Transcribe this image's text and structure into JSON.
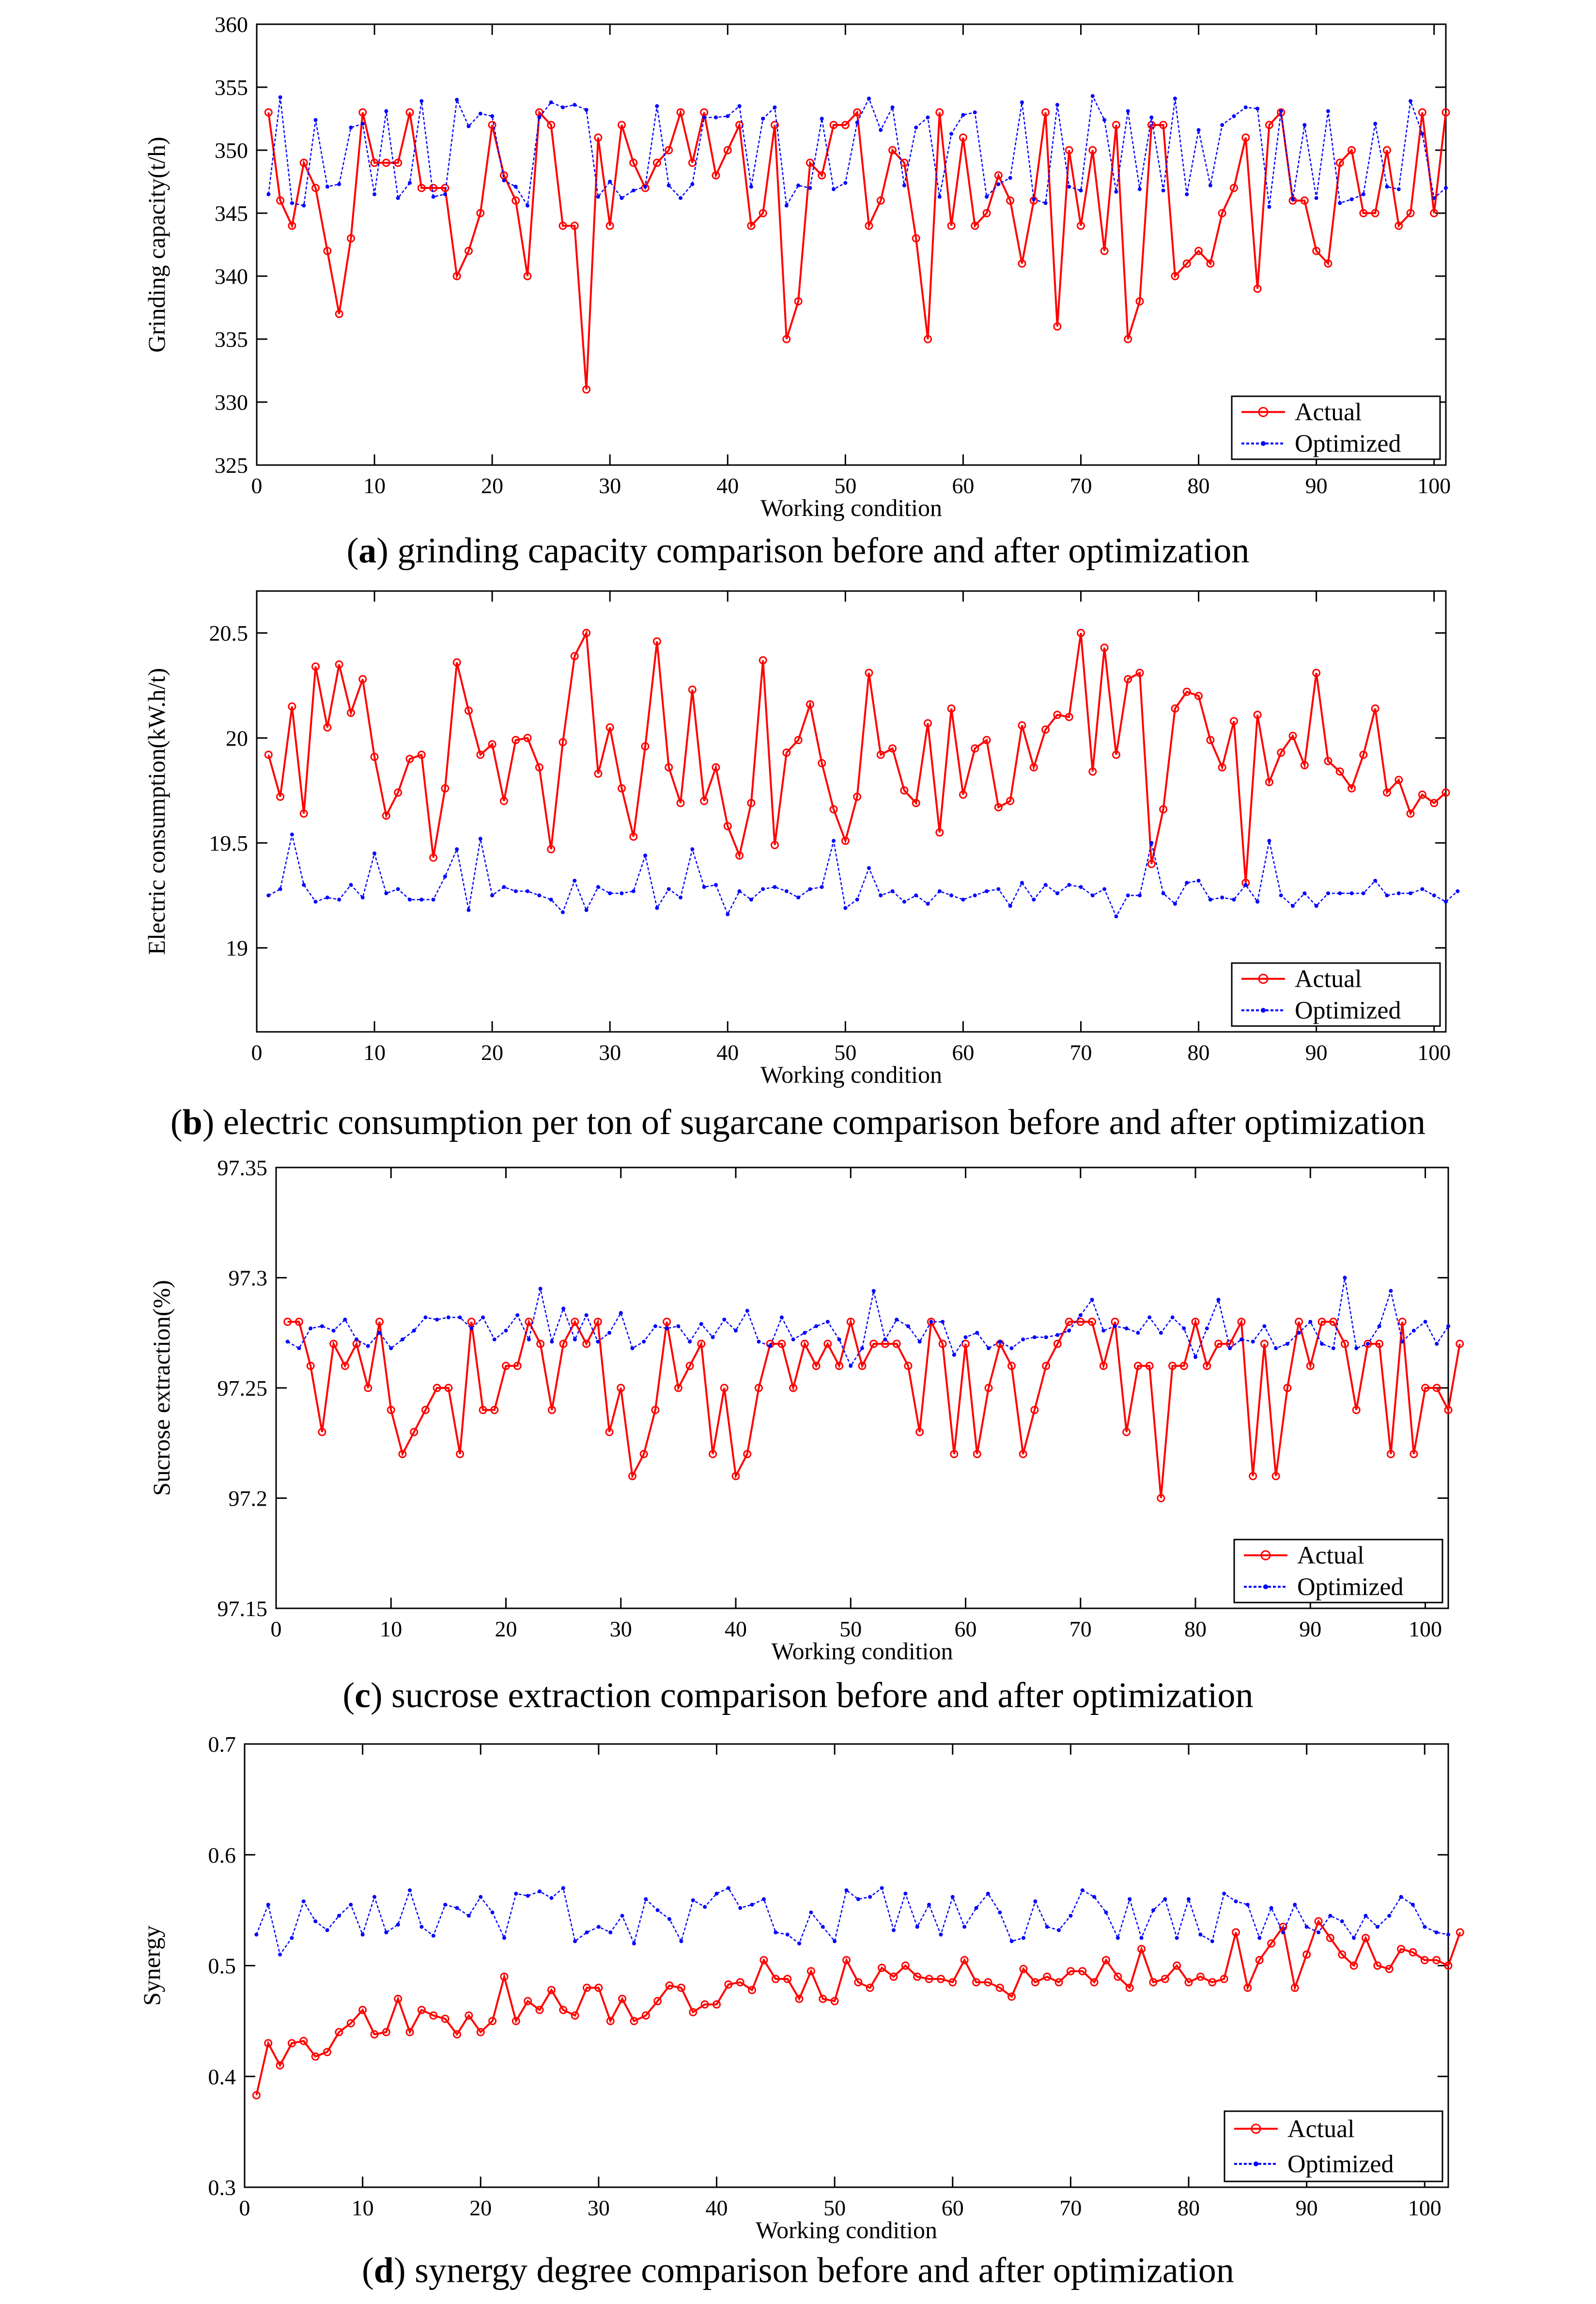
{
  "colors": {
    "actual": "#ff0000",
    "optimized": "#0000ff"
  },
  "chart_data": [
    {
      "type": "line",
      "caption_letter": "a",
      "caption": ") grinding capacity comparison before and after optimization",
      "xlabel": "Working condition",
      "ylabel": "Grinding capacity(t/h)",
      "xlim": [
        0,
        101
      ],
      "ylim": [
        325,
        360
      ],
      "xticks": [
        0,
        10,
        20,
        30,
        40,
        50,
        60,
        70,
        80,
        90,
        100
      ],
      "yticks": [
        325,
        330,
        335,
        340,
        345,
        350,
        355,
        360
      ],
      "ytick_labels": [
        "325",
        "330",
        "335",
        "340",
        "345",
        "350",
        "355",
        "360"
      ],
      "legend_position": "bottom-right",
      "series": [
        {
          "name": "Actual",
          "marker": "circle",
          "values": [
            353,
            346,
            344,
            349,
            347,
            342,
            337,
            343,
            353,
            349,
            349,
            349,
            353,
            347,
            347,
            347,
            340,
            342,
            345,
            352,
            348,
            346,
            340,
            353,
            352,
            344,
            344,
            331,
            351,
            344,
            352,
            349,
            347,
            349,
            350,
            353,
            349,
            353,
            348,
            350,
            352,
            344,
            345,
            352,
            335,
            338,
            349,
            348,
            352,
            352,
            353,
            344,
            346,
            350,
            349,
            343,
            335,
            353,
            344,
            351,
            344,
            345,
            348,
            346,
            341,
            346,
            353,
            336,
            350,
            344,
            350,
            342,
            352,
            335,
            338,
            352,
            352,
            340,
            341,
            342,
            341,
            345,
            347,
            351,
            339,
            352,
            353,
            346,
            346,
            342,
            341,
            349,
            350,
            345,
            345,
            350,
            344,
            345,
            353,
            345,
            353
          ]
        },
        {
          "name": "Optimized",
          "marker": "dot",
          "values": [
            346.5,
            354.2,
            345.8,
            345.6,
            352.4,
            347.1,
            347.3,
            351.8,
            352.1,
            346.5,
            353.1,
            346.2,
            347.4,
            353.9,
            346.3,
            346.5,
            354.0,
            351.9,
            352.9,
            352.7,
            347.6,
            347.1,
            345.6,
            352.6,
            353.8,
            353.4,
            353.6,
            353.2,
            346.3,
            347.5,
            346.2,
            346.8,
            347.1,
            353.5,
            347.2,
            346.2,
            347.3,
            352.6,
            352.6,
            352.7,
            353.5,
            347.1,
            352.5,
            353.4,
            345.6,
            347.2,
            347.0,
            352.5,
            346.9,
            347.4,
            352.2,
            354.1,
            351.6,
            353.4,
            347.2,
            351.8,
            352.6,
            346.3,
            351.3,
            352.8,
            353.0,
            346.3,
            347.3,
            347.8,
            353.8,
            346.1,
            345.8,
            353.6,
            347.1,
            346.8,
            354.3,
            352.4,
            346.7,
            353.1,
            346.9,
            352.6,
            346.8,
            354.1,
            346.5,
            351.6,
            347.2,
            352.0,
            352.7,
            353.4,
            353.3,
            345.5,
            353.1,
            346.1,
            352.0,
            346.2,
            353.1,
            345.8,
            346.1,
            346.5,
            352.1,
            347.1,
            346.9,
            353.9,
            351.3,
            346.2,
            347.0
          ]
        }
      ]
    },
    {
      "type": "line",
      "caption_letter": "b",
      "caption": ") electric consumption per ton of sugarcane comparison before and after optimization",
      "xlabel": "Working condition",
      "ylabel": "Electric consumption(kW.h/t)",
      "xlim": [
        0,
        101
      ],
      "ylim": [
        18.6,
        20.7
      ],
      "xticks": [
        0,
        10,
        20,
        30,
        40,
        50,
        60,
        70,
        80,
        90,
        100
      ],
      "yticks": [
        19,
        19.5,
        20,
        20.5
      ],
      "ytick_labels": [
        "19",
        "19.5",
        "20",
        "20.5"
      ],
      "legend_position": "bottom-right",
      "series": [
        {
          "name": "Actual",
          "marker": "circle",
          "values": [
            19.92,
            19.72,
            20.15,
            19.64,
            20.34,
            20.05,
            20.35,
            20.12,
            20.28,
            19.91,
            19.63,
            19.74,
            19.9,
            19.92,
            19.43,
            19.76,
            20.36,
            20.13,
            19.92,
            19.97,
            19.7,
            19.99,
            20.0,
            19.86,
            19.47,
            19.98,
            20.39,
            20.5,
            19.83,
            20.05,
            19.76,
            19.53,
            19.96,
            20.46,
            19.86,
            19.69,
            20.23,
            19.7,
            19.86,
            19.58,
            19.44,
            19.69,
            20.37,
            19.49,
            19.93,
            19.99,
            20.16,
            19.88,
            19.66,
            19.51,
            19.72,
            20.31,
            19.92,
            19.95,
            19.75,
            19.69,
            20.07,
            19.55,
            20.14,
            19.73,
            19.95,
            19.99,
            19.67,
            19.7,
            20.06,
            19.86,
            20.04,
            20.11,
            20.1,
            20.5,
            19.84,
            20.43,
            19.92,
            20.28,
            20.31,
            19.4,
            19.66,
            20.14,
            20.22,
            20.2,
            19.99,
            19.86,
            20.08,
            19.31,
            20.11,
            19.79,
            19.93,
            20.01,
            19.87,
            20.31,
            19.89,
            19.84,
            19.76,
            19.92,
            20.14,
            19.74,
            19.8,
            19.64,
            19.73,
            19.69,
            19.74
          ]
        },
        {
          "name": "Optimized",
          "marker": "dot",
          "values": [
            19.25,
            19.28,
            19.54,
            19.3,
            19.22,
            19.24,
            19.23,
            19.3,
            19.24,
            19.45,
            19.26,
            19.28,
            19.23,
            19.23,
            19.23,
            19.34,
            19.47,
            19.18,
            19.52,
            19.25,
            19.29,
            19.27,
            19.27,
            19.25,
            19.23,
            19.17,
            19.32,
            19.18,
            19.29,
            19.26,
            19.26,
            19.27,
            19.44,
            19.19,
            19.28,
            19.24,
            19.47,
            19.29,
            19.3,
            19.16,
            19.27,
            19.23,
            19.28,
            19.29,
            19.27,
            19.24,
            19.28,
            19.29,
            19.51,
            19.19,
            19.23,
            19.38,
            19.25,
            19.27,
            19.22,
            19.25,
            19.21,
            19.27,
            19.25,
            19.23,
            19.25,
            19.27,
            19.28,
            19.2,
            19.31,
            19.23,
            19.3,
            19.26,
            19.3,
            19.29,
            19.25,
            19.28,
            19.15,
            19.25,
            19.25,
            19.5,
            19.26,
            19.21,
            19.31,
            19.32,
            19.23,
            19.24,
            19.23,
            19.3,
            19.22,
            19.51,
            19.25,
            19.2,
            19.26,
            19.2,
            19.26,
            19.26,
            19.26,
            19.26,
            19.32,
            19.25,
            19.26,
            19.26,
            19.28,
            19.25,
            19.22,
            19.27
          ]
        }
      ]
    },
    {
      "type": "line",
      "caption_letter": "c",
      "caption": ") sucrose extraction comparison before and after optimization",
      "xlabel": "Working condition",
      "ylabel": "Sucrose extraction(%)",
      "xlim": [
        0,
        102
      ],
      "ylim": [
        97.15,
        97.35
      ],
      "xticks": [
        0,
        10,
        20,
        30,
        40,
        50,
        60,
        70,
        80,
        90,
        100
      ],
      "yticks": [
        97.15,
        97.2,
        97.25,
        97.3,
        97.35
      ],
      "ytick_labels": [
        "97.15",
        "97.2",
        "97.25",
        "97.3",
        "97.35"
      ],
      "legend_position": "bottom-right",
      "series": [
        {
          "name": "Actual",
          "marker": "circle",
          "values": [
            97.28,
            97.28,
            97.26,
            97.23,
            97.27,
            97.26,
            97.27,
            97.25,
            97.28,
            97.24,
            97.22,
            97.23,
            97.24,
            97.25,
            97.25,
            97.22,
            97.28,
            97.24,
            97.24,
            97.26,
            97.26,
            97.28,
            97.27,
            97.24,
            97.27,
            97.28,
            97.27,
            97.28,
            97.23,
            97.25,
            97.21,
            97.22,
            97.24,
            97.28,
            97.25,
            97.26,
            97.27,
            97.22,
            97.25,
            97.21,
            97.22,
            97.25,
            97.27,
            97.27,
            97.25,
            97.27,
            97.26,
            97.27,
            97.26,
            97.28,
            97.26,
            97.27,
            97.27,
            97.27,
            97.26,
            97.23,
            97.28,
            97.27,
            97.22,
            97.27,
            97.22,
            97.25,
            97.27,
            97.26,
            97.22,
            97.24,
            97.26,
            97.27,
            97.28,
            97.28,
            97.28,
            97.26,
            97.28,
            97.23,
            97.26,
            97.26,
            97.2,
            97.26,
            97.26,
            97.28,
            97.26,
            97.27,
            97.27,
            97.28,
            97.21,
            97.27,
            97.21,
            97.25,
            97.28,
            97.26,
            97.28,
            97.28,
            97.27,
            97.24,
            97.27,
            97.27,
            97.22,
            97.28,
            97.22,
            97.25,
            97.25,
            97.24,
            97.27
          ]
        },
        {
          "name": "Optimized",
          "marker": "dot",
          "values": [
            97.271,
            97.268,
            97.277,
            97.278,
            97.276,
            97.281,
            97.272,
            97.269,
            97.275,
            97.268,
            97.272,
            97.276,
            97.282,
            97.281,
            97.282,
            97.282,
            97.277,
            97.282,
            97.272,
            97.276,
            97.283,
            97.272,
            97.295,
            97.271,
            97.286,
            97.272,
            97.283,
            97.271,
            97.275,
            97.284,
            97.268,
            97.271,
            97.278,
            97.277,
            97.278,
            97.271,
            97.279,
            97.273,
            97.281,
            97.276,
            97.285,
            97.271,
            97.269,
            97.282,
            97.272,
            97.275,
            97.278,
            97.28,
            97.272,
            97.26,
            97.268,
            97.294,
            97.272,
            97.281,
            97.278,
            97.271,
            97.28,
            97.28,
            97.265,
            97.273,
            97.275,
            97.268,
            97.271,
            97.268,
            97.272,
            97.273,
            97.273,
            97.274,
            97.276,
            97.283,
            97.29,
            97.276,
            97.278,
            97.277,
            97.275,
            97.282,
            97.275,
            97.282,
            97.277,
            97.264,
            97.277,
            97.29,
            97.268,
            97.272,
            97.271,
            97.278,
            97.268,
            97.27,
            97.275,
            97.28,
            97.27,
            97.268,
            97.3,
            97.268,
            97.27,
            97.278,
            97.294,
            97.271,
            97.276,
            97.28,
            97.27,
            97.278
          ]
        }
      ]
    },
    {
      "type": "line",
      "caption_letter": "d",
      "caption": ") synergy degree comparison before and after optimization",
      "xlabel": "Working condition",
      "ylabel": "Synergy",
      "xlim": [
        0,
        102
      ],
      "ylim": [
        0.3,
        0.7
      ],
      "xticks": [
        0,
        10,
        20,
        30,
        40,
        50,
        60,
        70,
        80,
        90,
        100
      ],
      "yticks": [
        0.3,
        0.4,
        0.5,
        0.6,
        0.7
      ],
      "ytick_labels": [
        "0.3",
        "0.4",
        "0.5",
        "0.6",
        "0.7"
      ],
      "legend_position": "bottom-right",
      "series": [
        {
          "name": "Actual",
          "marker": "circle",
          "values": [
            0.383,
            0.43,
            0.41,
            0.43,
            0.432,
            0.418,
            0.422,
            0.44,
            0.448,
            0.46,
            0.438,
            0.44,
            0.47,
            0.44,
            0.46,
            0.455,
            0.452,
            0.438,
            0.455,
            0.44,
            0.45,
            0.49,
            0.45,
            0.468,
            0.46,
            0.478,
            0.46,
            0.455,
            0.48,
            0.48,
            0.45,
            0.47,
            0.45,
            0.455,
            0.468,
            0.482,
            0.48,
            0.458,
            0.465,
            0.465,
            0.483,
            0.485,
            0.478,
            0.505,
            0.488,
            0.488,
            0.47,
            0.495,
            0.47,
            0.468,
            0.505,
            0.485,
            0.48,
            0.498,
            0.49,
            0.5,
            0.49,
            0.488,
            0.488,
            0.485,
            0.505,
            0.485,
            0.485,
            0.48,
            0.472,
            0.497,
            0.485,
            0.49,
            0.485,
            0.495,
            0.495,
            0.485,
            0.505,
            0.49,
            0.48,
            0.515,
            0.485,
            0.488,
            0.5,
            0.485,
            0.49,
            0.485,
            0.488,
            0.53,
            0.48,
            0.505,
            0.52,
            0.535,
            0.48,
            0.51,
            0.54,
            0.525,
            0.51,
            0.5,
            0.525,
            0.5,
            0.497,
            0.515,
            0.512,
            0.505,
            0.505,
            0.5,
            0.53
          ]
        },
        {
          "name": "Optimized",
          "marker": "dot",
          "values": [
            0.528,
            0.555,
            0.51,
            0.525,
            0.558,
            0.54,
            0.532,
            0.545,
            0.555,
            0.528,
            0.562,
            0.53,
            0.537,
            0.568,
            0.535,
            0.527,
            0.555,
            0.552,
            0.545,
            0.562,
            0.548,
            0.525,
            0.565,
            0.563,
            0.567,
            0.561,
            0.57,
            0.522,
            0.53,
            0.535,
            0.53,
            0.545,
            0.52,
            0.56,
            0.55,
            0.542,
            0.522,
            0.559,
            0.553,
            0.565,
            0.57,
            0.552,
            0.555,
            0.56,
            0.53,
            0.528,
            0.52,
            0.548,
            0.535,
            0.522,
            0.568,
            0.56,
            0.562,
            0.57,
            0.532,
            0.565,
            0.535,
            0.555,
            0.528,
            0.562,
            0.535,
            0.552,
            0.565,
            0.548,
            0.522,
            0.525,
            0.558,
            0.535,
            0.532,
            0.545,
            0.568,
            0.562,
            0.548,
            0.525,
            0.56,
            0.525,
            0.55,
            0.56,
            0.525,
            0.56,
            0.528,
            0.522,
            0.565,
            0.558,
            0.555,
            0.525,
            0.552,
            0.53,
            0.555,
            0.535,
            0.53,
            0.545,
            0.54,
            0.525,
            0.545,
            0.535,
            0.545,
            0.562,
            0.555,
            0.535,
            0.53,
            0.528
          ]
        }
      ]
    }
  ]
}
